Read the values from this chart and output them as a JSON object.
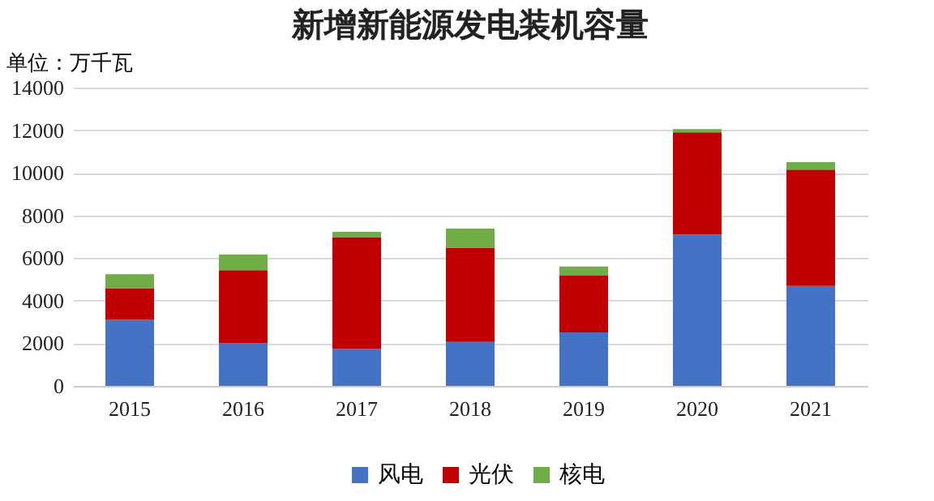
{
  "chart_data": {
    "type": "bar",
    "title": "新增新能源发电装机容量",
    "ylabel": "单位：万千瓦",
    "stacked": true,
    "categories": [
      "2015",
      "2016",
      "2017",
      "2018",
      "2019",
      "2020",
      "2021"
    ],
    "series": [
      {
        "name": "风电",
        "color": "#4472c4",
        "values": [
          3100,
          2000,
          1730,
          2060,
          2510,
          7100,
          4690
        ]
      },
      {
        "name": "光伏",
        "color": "#c00000",
        "values": [
          1480,
          3430,
          5250,
          4430,
          2660,
          4800,
          5460
        ]
      },
      {
        "name": "核电",
        "color": "#70ad47",
        "values": [
          660,
          730,
          250,
          890,
          430,
          150,
          350
        ]
      }
    ],
    "ylim": [
      0,
      14000
    ],
    "yticks": [
      0,
      2000,
      4000,
      6000,
      8000,
      10000,
      12000,
      14000
    ],
    "grid": "y",
    "legend": "bottom"
  }
}
